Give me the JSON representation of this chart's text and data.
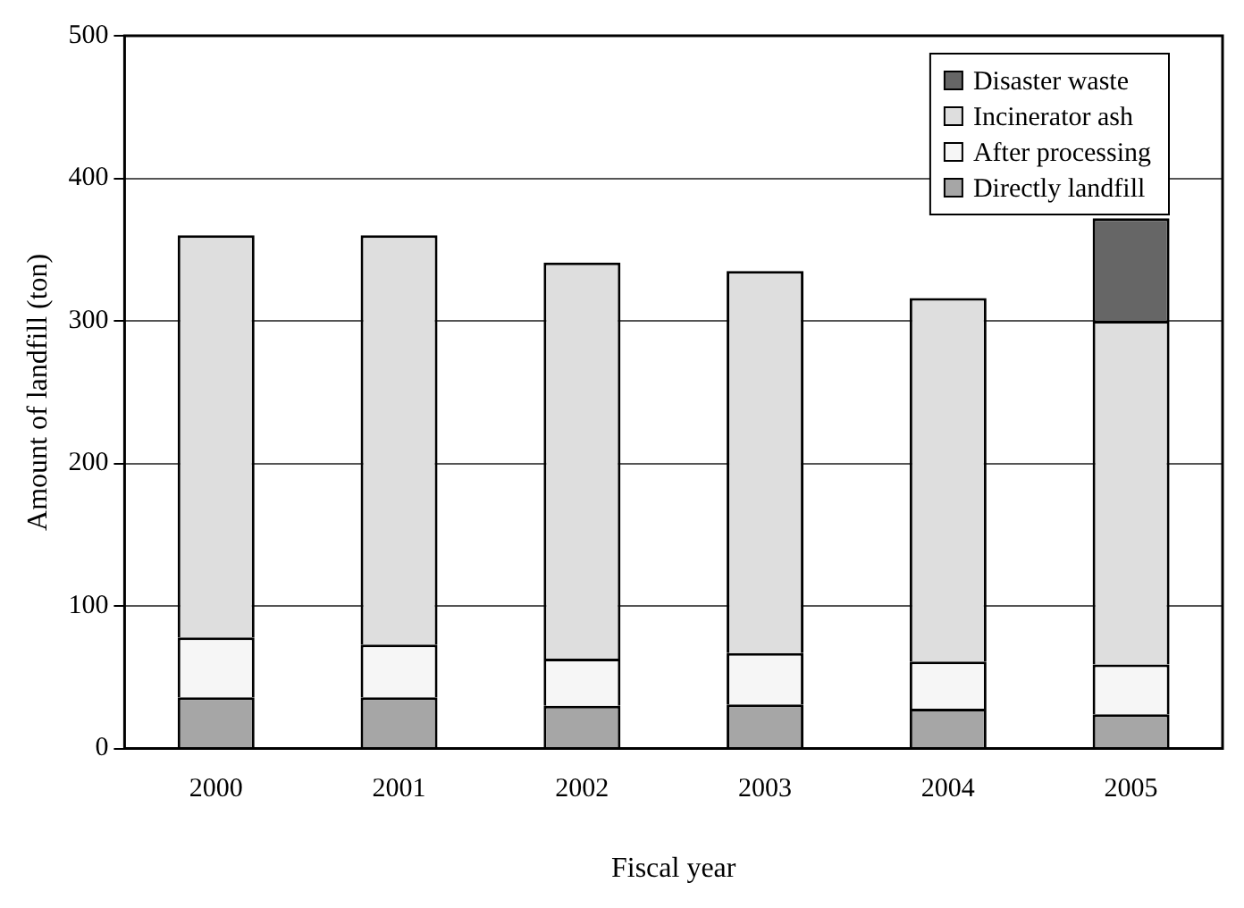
{
  "chart_data": {
    "type": "bar",
    "stacked": true,
    "xlabel": "Fiscal year",
    "ylabel": "Amount of landfill (ton)",
    "categories": [
      "2000",
      "2001",
      "2002",
      "2003",
      "2004",
      "2005"
    ],
    "series": [
      {
        "name": "Directly landfill",
        "color": "#a6a6a6",
        "values": [
          36,
          36,
          30,
          31,
          28,
          24
        ]
      },
      {
        "name": "After processing",
        "color": "#f6f6f6",
        "values": [
          42,
          37,
          33,
          36,
          33,
          35
        ]
      },
      {
        "name": "Incinerator ash",
        "color": "#dedede",
        "values": [
          282,
          287,
          278,
          268,
          255,
          241
        ]
      },
      {
        "name": "Disaster waste",
        "color": "#666666",
        "values": [
          null,
          null,
          null,
          null,
          null,
          72
        ]
      }
    ],
    "ylim": [
      0,
      500
    ],
    "yticks": [
      0,
      100,
      200,
      300,
      400,
      500
    ],
    "grid": "y",
    "legend": "top right"
  }
}
